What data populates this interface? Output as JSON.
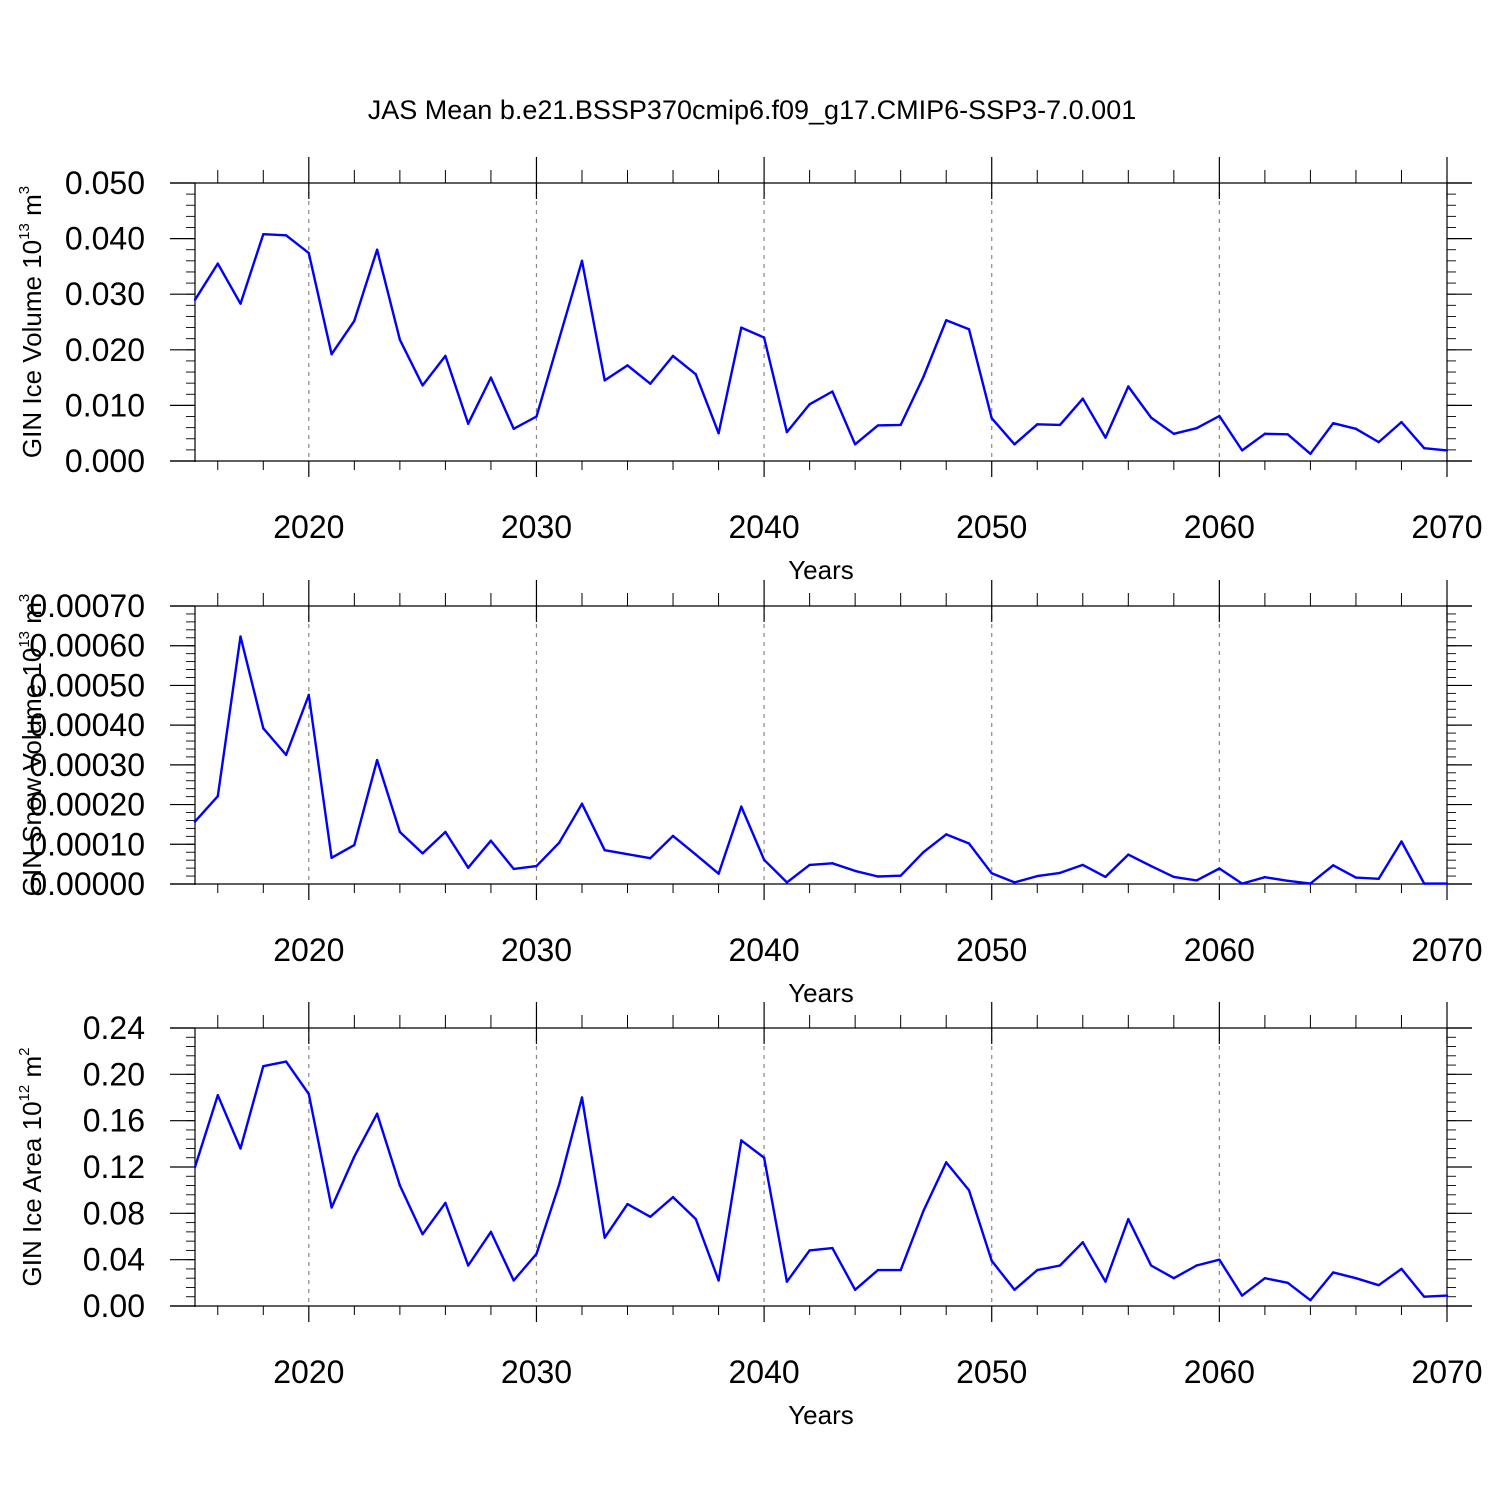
{
  "chart_data": {
    "type": "line",
    "title": "JAS Mean b.e21.BSSP370cmip6.f09_g17.CMIP6-SSP3-7.0.001",
    "colors": {
      "line": "#0000ff",
      "frame": "#000000",
      "grid": "#888888"
    },
    "x": [
      2015,
      2016,
      2017,
      2018,
      2019,
      2020,
      2021,
      2022,
      2023,
      2024,
      2025,
      2026,
      2027,
      2028,
      2029,
      2030,
      2031,
      2032,
      2033,
      2034,
      2035,
      2036,
      2037,
      2038,
      2039,
      2040,
      2041,
      2042,
      2043,
      2044,
      2045,
      2046,
      2047,
      2048,
      2049,
      2050,
      2051,
      2052,
      2053,
      2054,
      2055,
      2056,
      2057,
      2058,
      2059,
      2060,
      2061,
      2062,
      2063,
      2064,
      2065,
      2066,
      2067,
      2068,
      2069,
      2070
    ],
    "xlim": [
      2015,
      2070
    ],
    "xticks": [
      "2020",
      "2030",
      "2040",
      "2050",
      "2060",
      "2070"
    ],
    "xgrid": [
      2020,
      2030,
      2040,
      2050,
      2060
    ],
    "panels": [
      {
        "name": "ice-volume",
        "xlabel": "Years",
        "ylabel": "GIN Ice Volume 10",
        "ylabel_exp": "13",
        "ylabel_unit": " m",
        "ylabel_unit_exp": "3",
        "ylim": [
          0,
          0.05
        ],
        "yticks": [
          0,
          0.01,
          0.02,
          0.03,
          0.04,
          0.05
        ],
        "ytick_labels": [
          "0.000",
          "0.010",
          "0.020",
          "0.030",
          "0.040",
          "0.050"
        ],
        "minor_step": 0.002,
        "values": [
          0.029,
          0.0355,
          0.0283,
          0.0408,
          0.0406,
          0.0374,
          0.0192,
          0.0252,
          0.038,
          0.0218,
          0.0136,
          0.0189,
          0.0067,
          0.015,
          0.0058,
          0.008,
          0.022,
          0.036,
          0.0145,
          0.0172,
          0.0139,
          0.0189,
          0.0156,
          0.005,
          0.024,
          0.0222,
          0.0052,
          0.0102,
          0.0125,
          0.003,
          0.0064,
          0.0065,
          0.0151,
          0.0253,
          0.0237,
          0.0077,
          0.003,
          0.0066,
          0.0065,
          0.0112,
          0.0042,
          0.0134,
          0.0078,
          0.0049,
          0.0059,
          0.0081,
          0.0019,
          0.0049,
          0.0048,
          0.0013,
          0.0068,
          0.0058,
          0.0034,
          0.007,
          0.0023,
          0.0019
        ]
      },
      {
        "name": "snow-volume",
        "xlabel": "Years",
        "ylabel": "GIN Snow Volume 10",
        "ylabel_exp": "13",
        "ylabel_unit": " m",
        "ylabel_unit_exp": "3",
        "ylim": [
          0,
          0.0007
        ],
        "yticks": [
          0,
          0.0001,
          0.0002,
          0.0003,
          0.0004,
          0.0005,
          0.0006,
          0.0007
        ],
        "ytick_labels": [
          "0.00000",
          "0.00010",
          "0.00020",
          "0.00030",
          "0.00040",
          "0.00050",
          "0.00060",
          "0.00070"
        ],
        "minor_step": 2e-05,
        "values": [
          0.000157,
          0.000221,
          0.000623,
          0.000392,
          0.000325,
          0.000476,
          6.6e-05,
          9.8e-05,
          0.000312,
          0.000131,
          7.7e-05,
          0.000131,
          4.1e-05,
          0.000109,
          3.8e-05,
          4.5e-05,
          0.000104,
          0.000202,
          8.5e-05,
          7.5e-05,
          6.5e-05,
          0.000121,
          7.4e-05,
          2.6e-05,
          0.000195,
          6.1e-05,
          4e-06,
          4.8e-05,
          5.2e-05,
          3.3e-05,
          1.9e-05,
          2.1e-05,
          8e-05,
          0.000125,
          0.000102,
          2.7e-05,
          4e-06,
          2e-05,
          2.8e-05,
          4.8e-05,
          1.8e-05,
          7.4e-05,
          4.5e-05,
          1.8e-05,
          9e-06,
          3.9e-05,
          1e-06,
          1.7e-05,
          8e-06,
          1e-06,
          4.7e-05,
          1.6e-05,
          1.3e-05,
          0.000107,
          1e-06,
          1e-06
        ]
      },
      {
        "name": "ice-area",
        "xlabel": "Years",
        "ylabel": "GIN Ice Area 10",
        "ylabel_exp": "12",
        "ylabel_unit": " m",
        "ylabel_unit_exp": "2",
        "ylim": [
          0,
          0.24
        ],
        "yticks": [
          0,
          0.04,
          0.08,
          0.12,
          0.16,
          0.2,
          0.24
        ],
        "ytick_labels": [
          "0.00",
          "0.04",
          "0.08",
          "0.12",
          "0.16",
          "0.20",
          "0.24"
        ],
        "minor_step": 0.008,
        "values": [
          0.12,
          0.182,
          0.136,
          0.207,
          0.211,
          0.183,
          0.085,
          0.129,
          0.166,
          0.104,
          0.062,
          0.089,
          0.035,
          0.064,
          0.022,
          0.045,
          0.105,
          0.18,
          0.059,
          0.088,
          0.077,
          0.094,
          0.075,
          0.022,
          0.143,
          0.128,
          0.021,
          0.048,
          0.05,
          0.014,
          0.031,
          0.031,
          0.082,
          0.124,
          0.1,
          0.039,
          0.014,
          0.031,
          0.035,
          0.055,
          0.021,
          0.075,
          0.035,
          0.024,
          0.035,
          0.04,
          0.009,
          0.024,
          0.02,
          0.005,
          0.029,
          0.024,
          0.018,
          0.032,
          0.008,
          0.009
        ]
      }
    ]
  }
}
